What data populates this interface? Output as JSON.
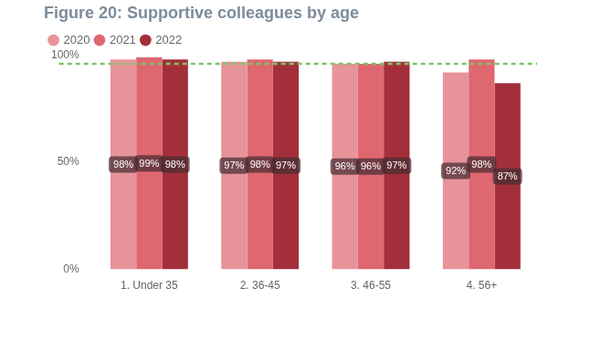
{
  "chart_data": {
    "type": "bar",
    "title": "Figure 20: Supportive colleagues by age",
    "categories": [
      "1. Under 35",
      "2. 36-45",
      "3. 46-55",
      "4. 56+"
    ],
    "series": [
      {
        "name": "2020",
        "color": "#e8939a",
        "values": [
          98,
          97,
          96,
          92
        ],
        "value_labels": [
          "98%",
          "97%",
          "96%",
          "92%"
        ]
      },
      {
        "name": "2021",
        "color": "#df6770",
        "values": [
          99,
          98,
          96,
          98
        ],
        "value_labels": [
          "99%",
          "98%",
          "96%",
          "98%"
        ]
      },
      {
        "name": "2022",
        "color": "#a32f3a",
        "values": [
          98,
          97,
          97,
          87
        ],
        "value_labels": [
          "98%",
          "97%",
          "97%",
          "87%"
        ]
      }
    ],
    "ylim": [
      0,
      100
    ],
    "yticks": [
      {
        "value": 0,
        "label": "0%"
      },
      {
        "value": 50,
        "label": "50%"
      },
      {
        "value": 100,
        "label": "100%"
      }
    ],
    "reference_line": 96,
    "grid": false,
    "legend": "top-left",
    "data_labels": true
  }
}
